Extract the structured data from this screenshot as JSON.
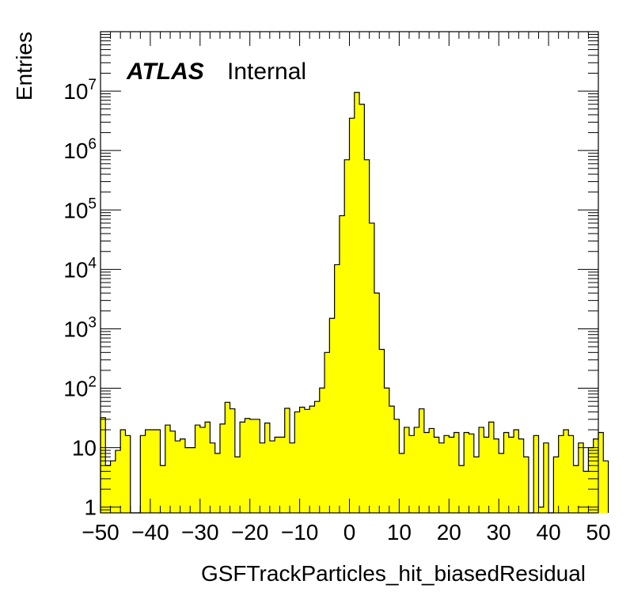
{
  "chart_data": {
    "type": "bar",
    "style": "histogram",
    "xlabel": "GSFTrackParticles_hit_biasedResidual",
    "ylabel": "Entries",
    "xlim": [
      -50,
      50
    ],
    "ylim": [
      0.8,
      100000000
    ],
    "log_y": true,
    "grid": false,
    "legend": "none",
    "bin_width": 1,
    "x_ticks": [
      "−50",
      "−40",
      "−30",
      "−20",
      "−10",
      "0",
      "10",
      "20",
      "30",
      "40",
      "50"
    ],
    "x_tick_values": [
      -50,
      -40,
      -30,
      -20,
      -10,
      0,
      10,
      20,
      30,
      40,
      50
    ],
    "y_ticks": [
      {
        "value": 1,
        "base": "1",
        "exp": ""
      },
      {
        "value": 10,
        "base": "10",
        "exp": ""
      },
      {
        "value": 100,
        "base": "10",
        "exp": "2"
      },
      {
        "value": 1000,
        "base": "10",
        "exp": "3"
      },
      {
        "value": 10000,
        "base": "10",
        "exp": "4"
      },
      {
        "value": 100000,
        "base": "10",
        "exp": "5"
      },
      {
        "value": 1000000,
        "base": "10",
        "exp": "6"
      },
      {
        "value": 10000000,
        "base": "10",
        "exp": "7"
      }
    ],
    "annotations": {
      "experiment": "ATLAS",
      "status": "Internal"
    },
    "fill_color": "#ffff00",
    "line_color": "#000000",
    "bins_start": -50,
    "values": [
      32,
      5,
      6,
      9,
      20,
      16,
      0,
      0,
      16,
      20,
      20,
      20,
      5,
      24,
      19,
      13,
      14,
      10,
      10,
      24,
      22,
      27,
      12,
      8,
      25,
      58,
      45,
      7,
      27,
      31,
      30,
      30,
      12,
      26,
      13,
      15,
      15,
      46,
      12,
      40,
      48,
      44,
      50,
      60,
      101,
      400,
      1500,
      12000,
      80000,
      700000,
      3500000,
      9500000,
      6000000,
      700000,
      60000,
      4000,
      450,
      101,
      50,
      30,
      8,
      22,
      16,
      22,
      45,
      18,
      21,
      15,
      12,
      16,
      15,
      18,
      5,
      18,
      17,
      7,
      22,
      15,
      27,
      14,
      8,
      18,
      15,
      20,
      14,
      7,
      0,
      16,
      1,
      12,
      0,
      7,
      16,
      20,
      16,
      5,
      12,
      4,
      10,
      14,
      18,
      6
    ]
  }
}
